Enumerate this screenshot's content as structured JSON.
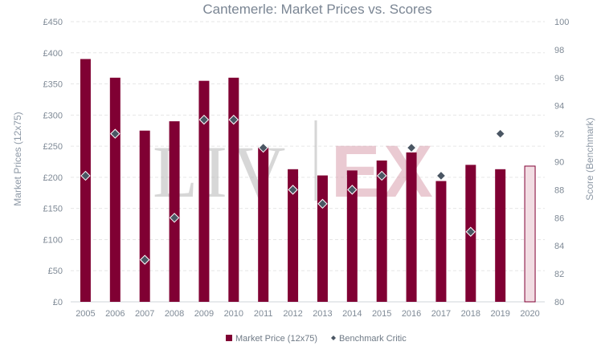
{
  "chart_data": {
    "type": "bar",
    "title": "Cantemerle: Market Prices vs. Scores",
    "categories": [
      "2005",
      "2006",
      "2007",
      "2008",
      "2009",
      "2010",
      "2011",
      "2012",
      "2013",
      "2014",
      "2015",
      "2016",
      "2017",
      "2018",
      "2019",
      "2020"
    ],
    "series": [
      {
        "name": "Market Price (12x75)",
        "type": "bar",
        "axis": "left",
        "values": [
          390,
          360,
          275,
          290,
          355,
          360,
          248,
          213,
          203,
          211,
          227,
          240,
          194,
          220,
          213,
          218
        ],
        "last_value_hollow": true
      },
      {
        "name": "Benchmark Critic",
        "type": "scatter",
        "axis": "right",
        "values": [
          89,
          92,
          83,
          86,
          93,
          93,
          91,
          88,
          87,
          88,
          89,
          91,
          89,
          85,
          92,
          null
        ]
      }
    ],
    "ylabel": "Market Prices (12x75)",
    "ylabel_right": "Score (Benchmark)",
    "ylim": [
      0,
      450
    ],
    "ylim_right": [
      80,
      100
    ],
    "yticks": [
      "£0",
      "£50",
      "£100",
      "£150",
      "£200",
      "£250",
      "£300",
      "£350",
      "£400",
      "£450"
    ],
    "yticks_right": [
      "80",
      "82",
      "84",
      "86",
      "88",
      "90",
      "92",
      "94",
      "96",
      "98",
      "100"
    ],
    "grid": true,
    "legend_position": "bottom-center",
    "watermark_left": "LIV",
    "watermark_right": "EX",
    "colors": {
      "bar": "#800033",
      "bar_hollow_fill": "#f2dde3",
      "marker": "#4a5663",
      "marker_stroke": "#ffffff"
    }
  }
}
